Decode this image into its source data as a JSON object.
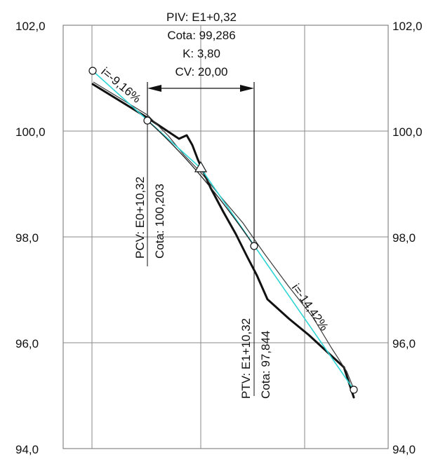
{
  "axis": {
    "left_ticks": [
      "102,0",
      "100,0",
      "98,0",
      "96,0",
      "94,0"
    ],
    "right_ticks": [
      "102,0",
      "100,0",
      "98,0",
      "96,0",
      "94,0"
    ]
  },
  "piv": {
    "line1": "PIV: E1+0,32",
    "line2": "Cota: 99,286",
    "line3": "K: 3,80",
    "line4": "CV: 20,00"
  },
  "pcv": {
    "line1": "PCV: E0+10,32",
    "line2": "Cota: 100,203"
  },
  "ptv": {
    "line1": "PTV: E1+10,32",
    "line2": "Cota: 97,844"
  },
  "grades": {
    "g1": "i=-9,16%",
    "g2": "i=-14,42%"
  },
  "colors": {
    "tangent": "#2fd5d5",
    "curve": "#222222",
    "terrain": "#111111",
    "grid": "#7a7a7a"
  }
}
